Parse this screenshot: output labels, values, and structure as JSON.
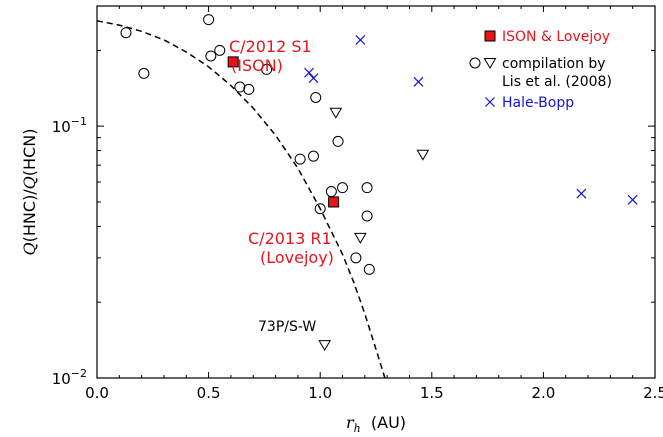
{
  "chart_data": {
    "type": "scatter",
    "xlabel_symbol": "r",
    "xlabel_sub": "h",
    "xlabel_unit": "(AU)",
    "ylabel_parts": [
      "Q",
      "(HNC)/",
      "Q",
      "(HCN)"
    ],
    "xlim": [
      0.0,
      2.5
    ],
    "ylim": [
      0.01,
      0.3
    ],
    "yscale": "log",
    "x_ticks": [
      "0.0",
      "0.5",
      "1.0",
      "1.5",
      "2.0",
      "2.5"
    ],
    "x_tick_values": [
      0.0,
      0.5,
      1.0,
      1.5,
      2.0,
      2.5
    ],
    "y_ticks": [
      {
        "value": 0.01,
        "base": "10",
        "exp": "−2"
      },
      {
        "value": 0.1,
        "base": "10",
        "exp": "−1"
      }
    ],
    "series": [
      {
        "name": "ISON & Lovejoy",
        "marker": "filled-square",
        "color": "#e8141c",
        "points": [
          {
            "x": 0.61,
            "y": 0.18
          },
          {
            "x": 1.06,
            "y": 0.05
          }
        ]
      },
      {
        "name": "compilation by Lis et al. (2008)",
        "marker": "open-circle",
        "color": "#000000",
        "points": [
          {
            "x": 0.13,
            "y": 0.235
          },
          {
            "x": 0.21,
            "y": 0.162
          },
          {
            "x": 0.5,
            "y": 0.265
          },
          {
            "x": 0.51,
            "y": 0.19
          },
          {
            "x": 0.55,
            "y": 0.2
          },
          {
            "x": 0.64,
            "y": 0.143
          },
          {
            "x": 0.68,
            "y": 0.14
          },
          {
            "x": 0.76,
            "y": 0.168
          },
          {
            "x": 0.91,
            "y": 0.074
          },
          {
            "x": 0.97,
            "y": 0.076
          },
          {
            "x": 0.98,
            "y": 0.13
          },
          {
            "x": 1.0,
            "y": 0.047
          },
          {
            "x": 1.05,
            "y": 0.055
          },
          {
            "x": 1.08,
            "y": 0.087
          },
          {
            "x": 1.1,
            "y": 0.057
          },
          {
            "x": 1.16,
            "y": 0.03
          },
          {
            "x": 1.21,
            "y": 0.057
          },
          {
            "x": 1.21,
            "y": 0.044
          },
          {
            "x": 1.22,
            "y": 0.027
          }
        ]
      },
      {
        "name": "compilation by Lis et al. (2008)",
        "marker": "open-triangle-down",
        "color": "#000000",
        "points": [
          {
            "x": 1.07,
            "y": 0.113
          },
          {
            "x": 1.46,
            "y": 0.077
          },
          {
            "x": 1.18,
            "y": 0.036
          },
          {
            "x": 1.02,
            "y": 0.0135
          }
        ]
      },
      {
        "name": "Hale-Bopp",
        "marker": "x",
        "color": "#1414dc",
        "points": [
          {
            "x": 0.95,
            "y": 0.163
          },
          {
            "x": 0.97,
            "y": 0.155
          },
          {
            "x": 1.18,
            "y": 0.22
          },
          {
            "x": 1.44,
            "y": 0.15
          },
          {
            "x": 2.17,
            "y": 0.054
          },
          {
            "x": 2.4,
            "y": 0.051
          }
        ]
      }
    ],
    "model_curve": {
      "style": "dashed",
      "color": "#000000",
      "points": [
        {
          "x": 0.0,
          "y": 0.262
        },
        {
          "x": 0.1,
          "y": 0.252
        },
        {
          "x": 0.2,
          "y": 0.238
        },
        {
          "x": 0.3,
          "y": 0.22
        },
        {
          "x": 0.4,
          "y": 0.197
        },
        {
          "x": 0.5,
          "y": 0.172
        },
        {
          "x": 0.6,
          "y": 0.145
        },
        {
          "x": 0.7,
          "y": 0.118
        },
        {
          "x": 0.8,
          "y": 0.092
        },
        {
          "x": 0.9,
          "y": 0.068
        },
        {
          "x": 1.0,
          "y": 0.047
        },
        {
          "x": 1.1,
          "y": 0.031
        },
        {
          "x": 1.15,
          "y": 0.024
        },
        {
          "x": 1.2,
          "y": 0.018
        },
        {
          "x": 1.25,
          "y": 0.013
        },
        {
          "x": 1.29,
          "y": 0.01
        }
      ]
    },
    "annotations": [
      {
        "lines": [
          "C/2012 S1",
          "(ISON)"
        ],
        "color": "#e8141c"
      },
      {
        "lines": [
          "C/2013 R1",
          "(Lovejoy)"
        ],
        "color": "#e8141c"
      },
      {
        "lines": [
          "73P/S-W"
        ],
        "color": "#000000"
      }
    ],
    "legend": {
      "placement": "top-right",
      "entries": [
        {
          "markers": [
            "filled-square"
          ],
          "lines": [
            "ISON & Lovejoy"
          ],
          "color": "#e8141c"
        },
        {
          "markers": [
            "open-circle",
            "open-triangle-down"
          ],
          "lines": [
            "compilation by",
            "Lis et al. (2008)"
          ],
          "color": "#000000"
        },
        {
          "markers": [
            "x"
          ],
          "lines": [
            "Hale-Bopp"
          ],
          "color": "#1414dc"
        }
      ]
    }
  }
}
